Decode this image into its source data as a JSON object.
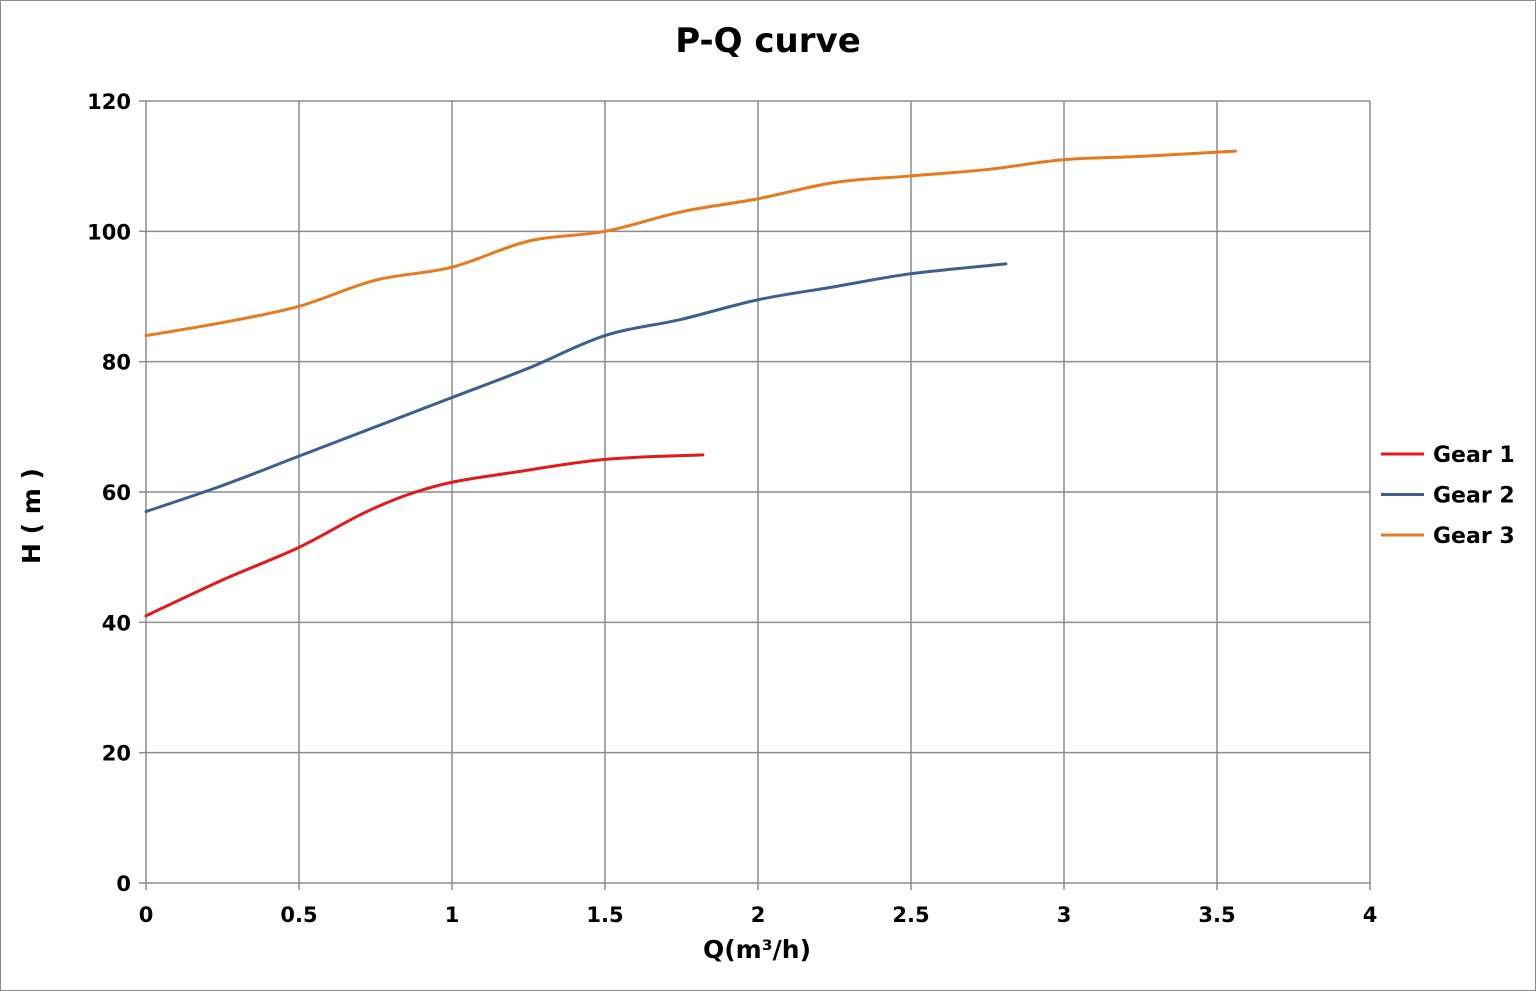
{
  "chart_data": {
    "type": "line",
    "title": "P-Q  curve",
    "xlabel": "Q(m³/h)",
    "ylabel": "H ( m )",
    "xlim": [
      0,
      4
    ],
    "ylim": [
      0,
      120
    ],
    "x_ticks": [
      "0",
      "0.5",
      "1",
      "1.5",
      "2",
      "2.5",
      "3",
      "3.5",
      "4"
    ],
    "y_ticks": [
      "0",
      "20",
      "40",
      "60",
      "80",
      "100",
      "120"
    ],
    "grid": true,
    "legend_position": "right",
    "series": [
      {
        "name": "Gear 1",
        "color": "#e31a1c",
        "points": [
          [
            0,
            41
          ],
          [
            0.25,
            46.5
          ],
          [
            0.5,
            51.5
          ],
          [
            0.7,
            56.5
          ],
          [
            0.85,
            59.5
          ],
          [
            1.0,
            61.5
          ],
          [
            1.2,
            63
          ],
          [
            1.5,
            65
          ],
          [
            1.82,
            65.7
          ]
        ]
      },
      {
        "name": "Gear 2",
        "color": "#3c5f8e",
        "points": [
          [
            0,
            57
          ],
          [
            0.25,
            61
          ],
          [
            0.5,
            65.5
          ],
          [
            0.75,
            70
          ],
          [
            1.0,
            74.5
          ],
          [
            1.25,
            79
          ],
          [
            1.5,
            84
          ],
          [
            1.75,
            86.5
          ],
          [
            2.0,
            89.5
          ],
          [
            2.25,
            91.5
          ],
          [
            2.5,
            93.5
          ],
          [
            2.81,
            95
          ]
        ]
      },
      {
        "name": "Gear 3",
        "color": "#e8791c",
        "points": [
          [
            0,
            84
          ],
          [
            0.25,
            86
          ],
          [
            0.5,
            88.5
          ],
          [
            0.75,
            92.5
          ],
          [
            1.0,
            94.5
          ],
          [
            1.25,
            98.5
          ],
          [
            1.5,
            100
          ],
          [
            1.75,
            103
          ],
          [
            2.0,
            105
          ],
          [
            2.25,
            107.5
          ],
          [
            2.5,
            108.5
          ],
          [
            2.75,
            109.5
          ],
          [
            3.0,
            111
          ],
          [
            3.25,
            111.5
          ],
          [
            3.56,
            112.3
          ]
        ]
      }
    ]
  }
}
